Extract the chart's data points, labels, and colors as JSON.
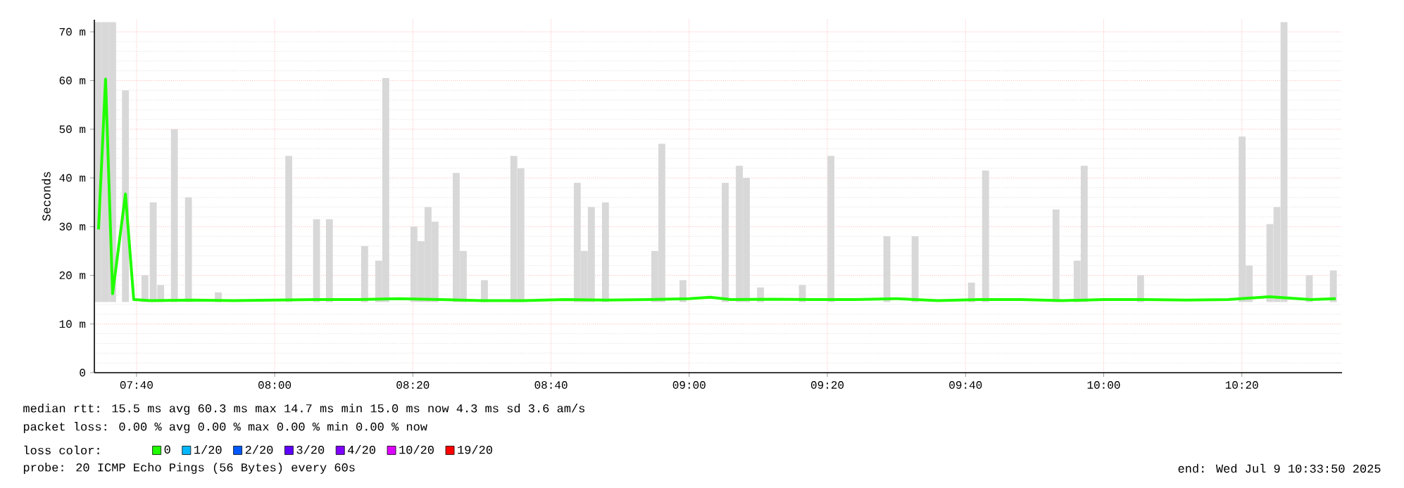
{
  "chart_data": {
    "type": "line",
    "ylabel": "Seconds",
    "legend_title": "loss color:",
    "legend": "bottom",
    "grid": true,
    "xlim": [
      7.565,
      10.575
    ],
    "xticks": [
      {
        "value": 7.6667,
        "label": "07:40"
      },
      {
        "value": 8.0,
        "label": "08:00"
      },
      {
        "value": 8.3333,
        "label": "08:20"
      },
      {
        "value": 8.6667,
        "label": "08:40"
      },
      {
        "value": 9.0,
        "label": "09:00"
      },
      {
        "value": 9.3333,
        "label": "09:20"
      },
      {
        "value": 9.6667,
        "label": "09:40"
      },
      {
        "value": 10.0,
        "label": "10:00"
      },
      {
        "value": 10.3333,
        "label": "10:20"
      }
    ],
    "ylim": [
      0,
      72.5
    ],
    "yticks": [
      {
        "value": 0,
        "label": "0"
      },
      {
        "value": 10,
        "label": "10 m"
      },
      {
        "value": 20,
        "label": "20 m"
      },
      {
        "value": 30,
        "label": "30 m"
      },
      {
        "value": 40,
        "label": "40 m"
      },
      {
        "value": 50,
        "label": "50 m"
      },
      {
        "value": 60,
        "label": "60 m"
      },
      {
        "value": 70,
        "label": "70 m"
      }
    ],
    "series": [
      {
        "type": "bar",
        "color": "#d8d8d8",
        "x": [
          7.575,
          7.592,
          7.609,
          7.64,
          7.687,
          7.707,
          7.725,
          7.758,
          7.792,
          7.864,
          8.034,
          8.101,
          8.132,
          8.217,
          8.251,
          8.268,
          8.336,
          8.353,
          8.37,
          8.387,
          8.438,
          8.455,
          8.506,
          8.577,
          8.594,
          8.73,
          8.747,
          8.764,
          8.798,
          8.917,
          8.934,
          8.985,
          9.087,
          9.121,
          9.138,
          9.172,
          9.273,
          9.342,
          9.477,
          9.545,
          9.681,
          9.715,
          9.885,
          9.936,
          9.953,
          10.089,
          10.334,
          10.351,
          10.401,
          10.418,
          10.435,
          10.496,
          10.554
        ],
        "base": [
          14.5,
          14.5,
          14.5,
          14.5,
          14.5,
          14.5,
          14.5,
          14.5,
          14.5,
          14.5,
          14.5,
          14.5,
          14.5,
          14.5,
          14.5,
          14.5,
          14.5,
          14.5,
          14.5,
          14.5,
          14.5,
          14.5,
          14.5,
          14.5,
          14.5,
          14.5,
          14.5,
          14.5,
          14.5,
          14.5,
          14.5,
          14.5,
          14.5,
          14.5,
          14.5,
          14.5,
          14.5,
          14.5,
          14.5,
          14.5,
          14.5,
          14.5,
          14.5,
          14.5,
          14.5,
          14.5,
          14.5,
          14.5,
          14.5,
          14.5,
          14.5,
          14.5,
          14.5
        ],
        "values": [
          57.5,
          57.5,
          57.5,
          43.5,
          5.5,
          20.5,
          3.5,
          35.5,
          21.5,
          2.0,
          30.0,
          17.0,
          17.0,
          11.5,
          8.5,
          46.0,
          15.5,
          12.5,
          19.5,
          16.5,
          26.5,
          10.5,
          4.5,
          30.0,
          27.5,
          24.5,
          10.5,
          19.5,
          20.5,
          10.5,
          32.5,
          4.5,
          24.5,
          28.0,
          25.5,
          3.0,
          3.5,
          30.0,
          13.5,
          13.5,
          4.0,
          27.0,
          19.0,
          8.5,
          28.0,
          5.5,
          34.0,
          7.5,
          16.0,
          19.5,
          57.5,
          5.5,
          6.5
        ]
      },
      {
        "name": "0",
        "color": "#20ff00",
        "x": [
          7.575,
          7.592,
          7.609,
          7.64,
          7.66,
          7.7,
          7.8,
          7.9,
          8.0,
          8.1,
          8.2,
          8.3,
          8.4,
          8.5,
          8.6,
          8.7,
          8.8,
          8.9,
          9.0,
          9.05,
          9.1,
          9.2,
          9.3,
          9.4,
          9.5,
          9.6,
          9.7,
          9.8,
          9.9,
          10.0,
          10.1,
          10.2,
          10.3,
          10.4,
          10.5,
          10.56
        ],
        "values": [
          29.4,
          60.3,
          16.2,
          36.7,
          15.0,
          14.8,
          14.9,
          14.8,
          14.9,
          15.0,
          15.0,
          15.2,
          15.0,
          14.8,
          14.8,
          15.0,
          14.9,
          15.0,
          15.2,
          15.5,
          15.0,
          15.1,
          15.0,
          15.0,
          15.2,
          14.8,
          15.0,
          15.0,
          14.8,
          15.0,
          15.0,
          14.9,
          15.0,
          15.6,
          15.0,
          15.2
        ]
      },
      {
        "name": "1/20",
        "color": "#00b8ff"
      },
      {
        "name": "2/20",
        "color": "#0059ff"
      },
      {
        "name": "3/20",
        "color": "#5e00ff"
      },
      {
        "name": "4/20",
        "color": "#7e00ff"
      },
      {
        "name": "10/20",
        "color": "#dd00ff"
      },
      {
        "name": "19/20",
        "color": "#ff0000"
      }
    ],
    "annotations": [
      "median rtt:  15.5 ms avg  60.3 ms max  14.7 ms min  15.0 ms now  4.3 ms sd  3.6   am/s",
      "packet loss: 0.00 % avg  0.00 % max  0.00 % min  0.00 % now",
      "probe:       20 ICMP Echo Pings (56 Bytes) every 60s",
      "end: Wed Jul  9 10:33:50 2025"
    ]
  }
}
